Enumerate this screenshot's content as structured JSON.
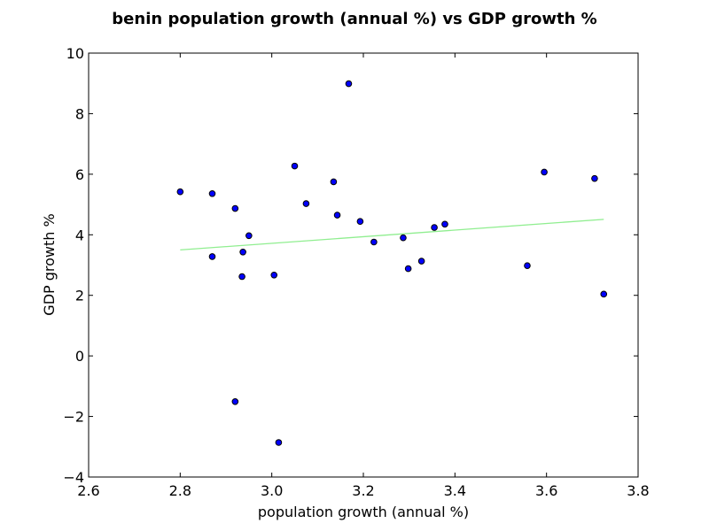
{
  "chart_data": {
    "type": "scatter",
    "title": "benin population growth (annual %) vs GDP growth %",
    "xlabel": "population growth (annual %)",
    "ylabel": "GDP growth %",
    "xlim": [
      2.6,
      3.8
    ],
    "ylim": [
      -4,
      10
    ],
    "xticks": [
      "2.6",
      "2.8",
      "3.0",
      "3.2",
      "3.4",
      "3.6",
      "3.8"
    ],
    "yticks": [
      "−4",
      "−2",
      "0",
      "2",
      "4",
      "6",
      "8",
      "10"
    ],
    "grid": false,
    "points": [
      {
        "x": 2.8,
        "y": 5.42
      },
      {
        "x": 2.87,
        "y": 5.36
      },
      {
        "x": 2.87,
        "y": 3.28
      },
      {
        "x": 2.92,
        "y": 4.87
      },
      {
        "x": 2.92,
        "y": -1.51
      },
      {
        "x": 2.935,
        "y": 2.62
      },
      {
        "x": 2.937,
        "y": 3.43
      },
      {
        "x": 2.95,
        "y": 3.97
      },
      {
        "x": 3.005,
        "y": 2.67
      },
      {
        "x": 3.015,
        "y": -2.86
      },
      {
        "x": 3.05,
        "y": 6.27
      },
      {
        "x": 3.075,
        "y": 5.03
      },
      {
        "x": 3.135,
        "y": 5.75
      },
      {
        "x": 3.143,
        "y": 4.65
      },
      {
        "x": 3.168,
        "y": 8.99
      },
      {
        "x": 3.193,
        "y": 4.44
      },
      {
        "x": 3.223,
        "y": 3.76
      },
      {
        "x": 3.287,
        "y": 3.9
      },
      {
        "x": 3.298,
        "y": 2.88
      },
      {
        "x": 3.327,
        "y": 3.13
      },
      {
        "x": 3.355,
        "y": 4.24
      },
      {
        "x": 3.378,
        "y": 4.35
      },
      {
        "x": 3.558,
        "y": 2.98
      },
      {
        "x": 3.595,
        "y": 6.07
      },
      {
        "x": 3.705,
        "y": 5.86
      },
      {
        "x": 3.725,
        "y": 2.04
      }
    ],
    "trendline": {
      "x": [
        2.8,
        3.725
      ],
      "y": [
        3.5,
        4.51
      ],
      "color": "#90ee90"
    },
    "point_color": "#0000ff",
    "point_edge_color": "#000000"
  }
}
